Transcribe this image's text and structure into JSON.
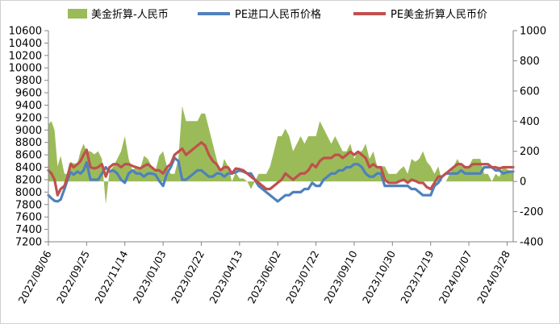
{
  "chart_data": {
    "type": "line",
    "title": "",
    "xlabel": "",
    "ylabel": "",
    "y2label": "",
    "legend": {
      "placement": "top",
      "entries": [
        "美金折算-人民币",
        "PE进口人民币价格",
        "PE美金折算人民币价"
      ]
    },
    "x_ticks": [
      "2022/08/06",
      "2022/09/25",
      "2022/11/14",
      "2023/01/03",
      "2023/02/22",
      "2023/04/13",
      "2023/06/02",
      "2023/07/22",
      "2023/09/10",
      "2023/10/30",
      "2023/12/19",
      "2024/02/07",
      "2024/03/28"
    ],
    "x_range": [
      "2022/08/06",
      "2024/04/05"
    ],
    "y_left": {
      "ticks": [
        "7200",
        "7400",
        "7600",
        "7800",
        "8000",
        "8200",
        "8400",
        "8600",
        "8800",
        "9000",
        "9200",
        "9400",
        "9600",
        "9800",
        "10000",
        "10200",
        "10400",
        "10600"
      ],
      "range": [
        7200,
        10600
      ]
    },
    "y_right": {
      "ticks": [
        "-400",
        "-200",
        "0",
        "200",
        "400",
        "600",
        "800",
        "1000"
      ],
      "range": [
        -400,
        1000
      ]
    },
    "colors": {
      "spread": "#9bbb59",
      "pe_import_rmb": "#4f81bd",
      "pe_usd_converted_rmb": "#c0504d"
    },
    "grid": false,
    "series": [
      {
        "name": "PE进口人民币价格",
        "axis": "left",
        "dates": [
          "2022/08/06",
          "2022/08/10",
          "2022/08/14",
          "2022/08/18",
          "2022/08/22",
          "2022/08/27",
          "2022/08/31",
          "2022/09/04",
          "2022/09/08",
          "2022/09/13",
          "2022/09/17",
          "2022/09/21",
          "2022/09/25",
          "2022/09/30",
          "2022/10/05",
          "2022/10/10",
          "2022/10/15",
          "2022/10/20",
          "2022/10/25",
          "2022/10/30",
          "2022/11/04",
          "2022/11/09",
          "2022/11/14",
          "2022/11/19",
          "2022/11/24",
          "2022/11/29",
          "2022/12/04",
          "2022/12/09",
          "2022/12/14",
          "2022/12/19",
          "2022/12/24",
          "2022/12/29",
          "2023/01/03",
          "2023/01/08",
          "2023/01/13",
          "2023/01/18",
          "2023/01/23",
          "2023/01/28",
          "2023/02/02",
          "2023/02/07",
          "2023/02/12",
          "2023/02/17",
          "2023/02/22",
          "2023/02/27",
          "2023/03/04",
          "2023/03/09",
          "2023/03/14",
          "2023/03/19",
          "2023/03/24",
          "2023/03/29",
          "2023/04/03",
          "2023/04/08",
          "2023/04/13",
          "2023/04/18",
          "2023/04/23",
          "2023/04/28",
          "2023/05/03",
          "2023/05/08",
          "2023/05/13",
          "2023/05/18",
          "2023/05/23",
          "2023/05/28",
          "2023/06/02",
          "2023/06/07",
          "2023/06/12",
          "2023/06/17",
          "2023/06/22",
          "2023/06/27",
          "2023/07/02",
          "2023/07/07",
          "2023/07/12",
          "2023/07/17",
          "2023/07/22",
          "2023/07/27",
          "2023/08/01",
          "2023/08/06",
          "2023/08/11",
          "2023/08/16",
          "2023/08/21",
          "2023/08/26",
          "2023/08/31",
          "2023/09/05",
          "2023/09/10",
          "2023/09/15",
          "2023/09/20",
          "2023/09/25",
          "2023/09/30",
          "2023/10/05",
          "2023/10/10",
          "2023/10/15",
          "2023/10/20",
          "2023/10/25",
          "2023/10/30",
          "2023/11/04",
          "2023/11/09",
          "2023/11/14",
          "2023/11/19",
          "2023/11/24",
          "2023/11/29",
          "2023/12/04",
          "2023/12/09",
          "2023/12/14",
          "2023/12/19",
          "2023/12/24",
          "2023/12/29",
          "2024/01/03",
          "2024/01/08",
          "2024/01/13",
          "2024/01/18",
          "2024/01/23",
          "2024/01/28",
          "2024/02/02",
          "2024/02/07",
          "2024/02/12",
          "2024/02/17",
          "2024/02/22",
          "2024/02/27",
          "2024/03/03",
          "2024/03/08",
          "2024/03/13",
          "2024/03/18",
          "2024/03/23",
          "2024/03/28",
          "2024/04/02",
          "2024/04/05"
        ],
        "values": [
          7950,
          7900,
          7860,
          7850,
          7880,
          8050,
          8200,
          8320,
          8280,
          8330,
          8300,
          8350,
          8480,
          8200,
          8200,
          8200,
          8300,
          8400,
          8330,
          8350,
          8300,
          8200,
          8150,
          8300,
          8350,
          8300,
          8300,
          8250,
          8300,
          8300,
          8280,
          8180,
          8100,
          8300,
          8400,
          8550,
          8500,
          8200,
          8200,
          8250,
          8300,
          8350,
          8350,
          8300,
          8250,
          8250,
          8300,
          8300,
          8250,
          8300,
          8300,
          8320,
          8350,
          8330,
          8300,
          8300,
          8200,
          8100,
          8050,
          8000,
          7950,
          7900,
          7850,
          7900,
          7950,
          7950,
          8000,
          8000,
          8000,
          8050,
          8050,
          8150,
          8100,
          8100,
          8200,
          8250,
          8300,
          8300,
          8350,
          8350,
          8400,
          8400,
          8450,
          8450,
          8400,
          8300,
          8250,
          8250,
          8300,
          8300,
          8100,
          8100,
          8100,
          8100,
          8100,
          8100,
          8100,
          8050,
          8050,
          8000,
          7950,
          7950,
          7950,
          8100,
          8150,
          8250,
          8300,
          8300,
          8300,
          8300,
          8350,
          8300,
          8300,
          8300,
          8300,
          8300,
          8400,
          8400,
          8400,
          8350,
          8350,
          8300,
          8320,
          8330,
          8330
        ],
        "color": "#4f81bd"
      },
      {
        "name": "PE美金折算人民币价",
        "axis": "left",
        "dates": [
          "2022/08/06",
          "2022/08/10",
          "2022/08/14",
          "2022/08/18",
          "2022/08/22",
          "2022/08/27",
          "2022/08/31",
          "2022/09/04",
          "2022/09/08",
          "2022/09/13",
          "2022/09/17",
          "2022/09/21",
          "2022/09/25",
          "2022/09/30",
          "2022/10/05",
          "2022/10/10",
          "2022/10/15",
          "2022/10/20",
          "2022/10/25",
          "2022/10/30",
          "2022/11/04",
          "2022/11/09",
          "2022/11/14",
          "2022/11/19",
          "2022/11/24",
          "2022/11/29",
          "2022/12/04",
          "2022/12/09",
          "2022/12/14",
          "2022/12/19",
          "2022/12/24",
          "2022/12/29",
          "2023/01/03",
          "2023/01/08",
          "2023/01/13",
          "2023/01/18",
          "2023/01/23",
          "2023/01/28",
          "2023/02/02",
          "2023/02/07",
          "2023/02/12",
          "2023/02/17",
          "2023/02/22",
          "2023/02/27",
          "2023/03/04",
          "2023/03/09",
          "2023/03/14",
          "2023/03/19",
          "2023/03/24",
          "2023/03/29",
          "2023/04/03",
          "2023/04/08",
          "2023/04/13",
          "2023/04/18",
          "2023/04/23",
          "2023/04/28",
          "2023/05/03",
          "2023/05/08",
          "2023/05/13",
          "2023/05/18",
          "2023/05/23",
          "2023/05/28",
          "2023/06/02",
          "2023/06/07",
          "2023/06/12",
          "2023/06/17",
          "2023/06/22",
          "2023/06/27",
          "2023/07/02",
          "2023/07/07",
          "2023/07/12",
          "2023/07/17",
          "2023/07/22",
          "2023/07/27",
          "2023/08/01",
          "2023/08/06",
          "2023/08/11",
          "2023/08/16",
          "2023/08/21",
          "2023/08/26",
          "2023/08/31",
          "2023/09/05",
          "2023/09/10",
          "2023/09/15",
          "2023/09/20",
          "2023/09/25",
          "2023/09/30",
          "2023/10/05",
          "2023/10/10",
          "2023/10/15",
          "2023/10/20",
          "2023/10/25",
          "2023/10/30",
          "2023/11/04",
          "2023/11/09",
          "2023/11/14",
          "2023/11/19",
          "2023/11/24",
          "2023/11/29",
          "2023/12/04",
          "2023/12/09",
          "2023/12/14",
          "2023/12/19",
          "2023/12/24",
          "2023/12/29",
          "2024/01/03",
          "2024/01/08",
          "2024/01/13",
          "2024/01/18",
          "2024/01/23",
          "2024/01/28",
          "2024/02/02",
          "2024/02/07",
          "2024/02/12",
          "2024/02/17",
          "2024/02/22",
          "2024/02/27",
          "2024/03/03",
          "2024/03/08",
          "2024/03/13",
          "2024/03/18",
          "2024/03/23",
          "2024/03/28",
          "2024/04/02",
          "2024/04/05"
        ],
        "values": [
          8350,
          8300,
          8200,
          7950,
          8050,
          8100,
          8250,
          8450,
          8400,
          8450,
          8500,
          8600,
          8680,
          8400,
          8380,
          8400,
          8450,
          8250,
          8400,
          8450,
          8450,
          8400,
          8450,
          8450,
          8420,
          8400,
          8380,
          8420,
          8450,
          8400,
          8350,
          8350,
          8300,
          8400,
          8450,
          8600,
          8650,
          8700,
          8600,
          8650,
          8700,
          8750,
          8800,
          8750,
          8600,
          8500,
          8450,
          8350,
          8400,
          8400,
          8300,
          8380,
          8370,
          8350,
          8300,
          8250,
          8200,
          8150,
          8100,
          8050,
          8050,
          8100,
          8150,
          8200,
          8300,
          8250,
          8200,
          8250,
          8300,
          8300,
          8350,
          8450,
          8400,
          8500,
          8550,
          8550,
          8550,
          8600,
          8600,
          8550,
          8600,
          8650,
          8600,
          8650,
          8600,
          8550,
          8400,
          8450,
          8400,
          8400,
          8200,
          8150,
          8150,
          8150,
          8180,
          8200,
          8150,
          8200,
          8180,
          8150,
          8150,
          8080,
          8050,
          8150,
          8250,
          8250,
          8300,
          8350,
          8400,
          8450,
          8450,
          8400,
          8400,
          8450,
          8450,
          8450,
          8450,
          8450,
          8400,
          8400,
          8380,
          8400,
          8400,
          8400,
          8400
        ],
        "color": "#c0504d"
      },
      {
        "name": "美金折算-人民币",
        "axis": "right",
        "type": "area",
        "dates": [
          "2022/08/06",
          "2022/08/10",
          "2022/08/14",
          "2022/08/18",
          "2022/08/22",
          "2022/08/27",
          "2022/08/31",
          "2022/09/04",
          "2022/09/08",
          "2022/09/13",
          "2022/09/17",
          "2022/09/21",
          "2022/09/25",
          "2022/09/30",
          "2022/10/05",
          "2022/10/10",
          "2022/10/15",
          "2022/10/20",
          "2022/10/25",
          "2022/10/30",
          "2022/11/04",
          "2022/11/09",
          "2022/11/14",
          "2022/11/19",
          "2022/11/24",
          "2022/11/29",
          "2022/12/04",
          "2022/12/09",
          "2022/12/14",
          "2022/12/19",
          "2022/12/24",
          "2022/12/29",
          "2023/01/03",
          "2023/01/08",
          "2023/01/13",
          "2023/01/18",
          "2023/01/23",
          "2023/01/28",
          "2023/02/02",
          "2023/02/07",
          "2023/02/12",
          "2023/02/17",
          "2023/02/22",
          "2023/02/27",
          "2023/03/04",
          "2023/03/09",
          "2023/03/14",
          "2023/03/19",
          "2023/03/24",
          "2023/03/29",
          "2023/04/03",
          "2023/04/08",
          "2023/04/13",
          "2023/04/18",
          "2023/04/23",
          "2023/04/28",
          "2023/05/03",
          "2023/05/08",
          "2023/05/13",
          "2023/05/18",
          "2023/05/23",
          "2023/05/28",
          "2023/06/02",
          "2023/06/07",
          "2023/06/12",
          "2023/06/17",
          "2023/06/22",
          "2023/06/27",
          "2023/07/02",
          "2023/07/07",
          "2023/07/12",
          "2023/07/17",
          "2023/07/22",
          "2023/07/27",
          "2023/08/01",
          "2023/08/06",
          "2023/08/11",
          "2023/08/16",
          "2023/08/21",
          "2023/08/26",
          "2023/08/31",
          "2023/09/05",
          "2023/09/10",
          "2023/09/15",
          "2023/09/20",
          "2023/09/25",
          "2023/09/30",
          "2023/10/05",
          "2023/10/10",
          "2023/10/15",
          "2023/10/20",
          "2023/10/25",
          "2023/10/30",
          "2023/11/04",
          "2023/11/09",
          "2023/11/14",
          "2023/11/19",
          "2023/11/24",
          "2023/11/29",
          "2023/12/04",
          "2023/12/09",
          "2023/12/14",
          "2023/12/19",
          "2023/12/24",
          "2023/12/29",
          "2024/01/03",
          "2024/01/08",
          "2024/01/13",
          "2024/01/18",
          "2024/01/23",
          "2024/01/28",
          "2024/02/02",
          "2024/02/07",
          "2024/02/12",
          "2024/02/17",
          "2024/02/22",
          "2024/02/27",
          "2024/03/03",
          "2024/03/08",
          "2024/03/13",
          "2024/03/18",
          "2024/03/23",
          "2024/03/28",
          "2024/04/02",
          "2024/04/05"
        ],
        "values": [
          380,
          400,
          340,
          100,
          170,
          50,
          50,
          130,
          120,
          120,
          200,
          250,
          200,
          200,
          180,
          200,
          150,
          -150,
          70,
          100,
          150,
          200,
          300,
          150,
          70,
          100,
          80,
          170,
          150,
          100,
          70,
          170,
          200,
          100,
          50,
          50,
          150,
          500,
          400,
          400,
          400,
          400,
          450,
          450,
          350,
          250,
          150,
          50,
          150,
          100,
          0,
          60,
          20,
          20,
          0,
          -50,
          0,
          50,
          50,
          50,
          100,
          200,
          300,
          300,
          350,
          300,
          200,
          250,
          300,
          250,
          300,
          300,
          300,
          400,
          350,
          300,
          250,
          300,
          250,
          200,
          200,
          250,
          150,
          200,
          200,
          250,
          150,
          200,
          100,
          100,
          100,
          50,
          50,
          50,
          80,
          100,
          50,
          150,
          130,
          150,
          200,
          130,
          100,
          50,
          100,
          0,
          0,
          50,
          100,
          150,
          100,
          100,
          100,
          150,
          150,
          150,
          50,
          50,
          0,
          50,
          30,
          100,
          80,
          70,
          70
        ],
        "color": "#9bbb59"
      }
    ]
  }
}
